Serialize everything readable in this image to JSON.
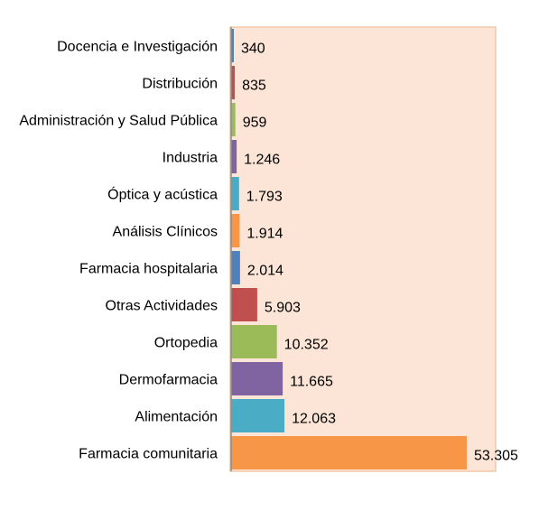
{
  "chart_data": {
    "type": "bar",
    "orientation": "horizontal",
    "title": "",
    "xlabel": "",
    "ylabel": "",
    "xlim": [
      0,
      53305
    ],
    "grid": false,
    "legend": "none",
    "plot_background": "#fce4d6",
    "categories": [
      "Docencia e Investigación",
      "Distribución",
      "Administración y Salud Pública",
      "Industria",
      "Óptica y acústica",
      "Análisis Clínicos",
      "Farmacia hospitalaria",
      "Otras Actividades",
      "Ortopedia",
      "Dermofarmacia",
      "Alimentación",
      "Farmacia comunitaria"
    ],
    "values": [
      340,
      835,
      959,
      1246,
      1793,
      1914,
      2014,
      5903,
      10352,
      11665,
      12063,
      53305
    ],
    "value_labels": [
      "340",
      "835",
      "959",
      "1.246",
      "1.793",
      "1.914",
      "2.014",
      "5.903",
      "10.352",
      "11.665",
      "12.063",
      "53.305"
    ],
    "colors": [
      "#4f81bd",
      "#c0504d",
      "#9bbb59",
      "#8064a2",
      "#4bacc6",
      "#f79646",
      "#4f81bd",
      "#c0504d",
      "#9bbb59",
      "#8064a2",
      "#4bacc6",
      "#f79646"
    ]
  }
}
